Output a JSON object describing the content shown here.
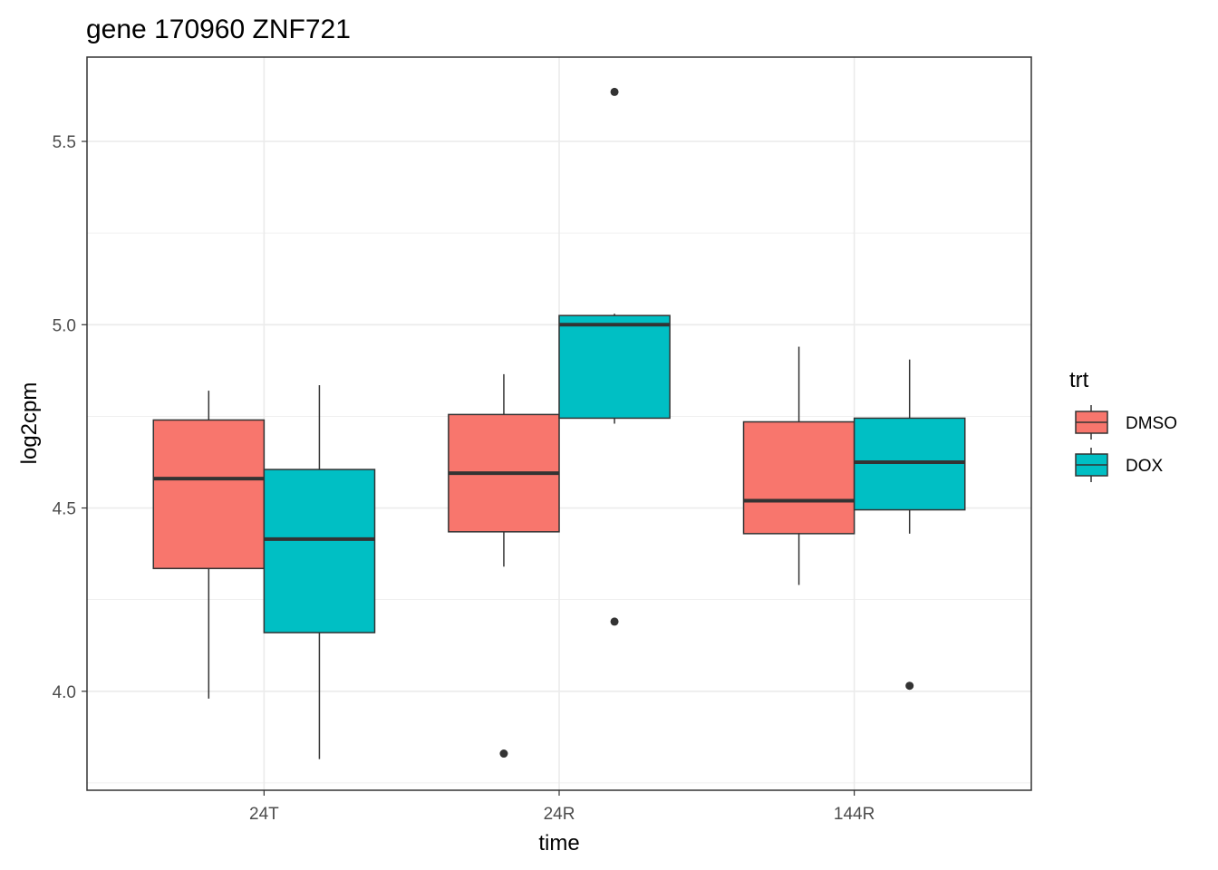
{
  "chart_data": {
    "type": "boxplot",
    "title": "gene 170960 ZNF721",
    "xlabel": "time",
    "ylabel": "log2cpm",
    "categories": [
      "24T",
      "24R",
      "144R"
    ],
    "ylim": [
      3.73,
      5.73
    ],
    "yticks": [
      4.0,
      4.5,
      5.0,
      5.5
    ],
    "grid": true,
    "legend": {
      "title": "trt",
      "position": "right"
    },
    "series": [
      {
        "name": "DMSO",
        "color": "#F8766D",
        "boxes": [
          {
            "category": "24T",
            "whisker_low": 3.98,
            "q1": 4.335,
            "median": 4.58,
            "q3": 4.74,
            "whisker_high": 4.82,
            "outliers": []
          },
          {
            "category": "24R",
            "whisker_low": 4.34,
            "q1": 4.435,
            "median": 4.595,
            "q3": 4.755,
            "whisker_high": 4.865,
            "outliers": [
              3.83
            ]
          },
          {
            "category": "144R",
            "whisker_low": 4.29,
            "q1": 4.43,
            "median": 4.52,
            "q3": 4.735,
            "whisker_high": 4.94,
            "outliers": []
          }
        ]
      },
      {
        "name": "DOX",
        "color": "#00BFC4",
        "boxes": [
          {
            "category": "24T",
            "whisker_low": 3.815,
            "q1": 4.16,
            "median": 4.415,
            "q3": 4.605,
            "whisker_high": 4.835,
            "outliers": []
          },
          {
            "category": "24R",
            "whisker_low": 4.73,
            "q1": 4.745,
            "median": 5.0,
            "q3": 5.025,
            "whisker_high": 5.03,
            "outliers": [
              5.635,
              4.19
            ]
          },
          {
            "category": "144R",
            "whisker_low": 4.43,
            "q1": 4.495,
            "median": 4.625,
            "q3": 4.745,
            "whisker_high": 4.905,
            "outliers": [
              4.015
            ]
          }
        ]
      }
    ]
  }
}
